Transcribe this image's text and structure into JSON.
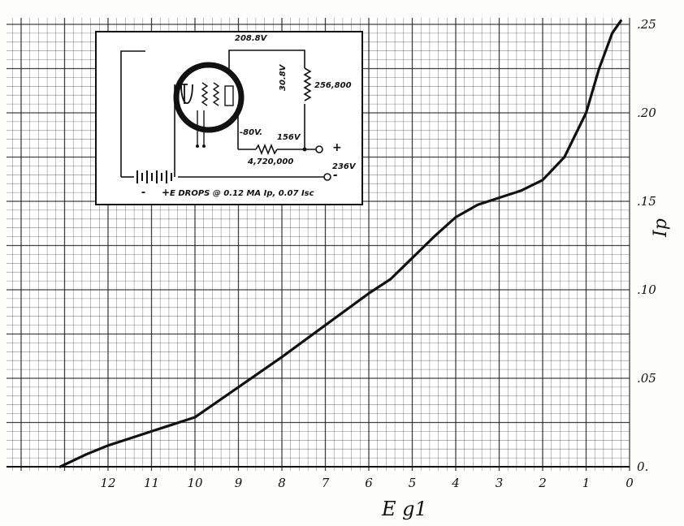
{
  "chart_data": {
    "type": "line",
    "title": "",
    "xlabel": "E g1",
    "ylabel": "Ip",
    "x_reversed": true,
    "xlim": [
      0,
      14
    ],
    "ylim": [
      0,
      0.25
    ],
    "grid": true,
    "x_ticks": [
      "12",
      "11",
      "10",
      "9",
      "8",
      "7",
      "6",
      "5",
      "4",
      "3",
      "2",
      "1",
      "0"
    ],
    "y_ticks": [
      "0.",
      ".05",
      ".10",
      ".15",
      ".20",
      ".25"
    ],
    "series": [
      {
        "x": [
          13.1,
          12.5,
          12.0,
          11.5,
          11.0,
          10.5,
          10.0,
          9.0,
          8.0,
          7.0,
          6.0,
          5.5,
          5.0,
          4.5,
          4.0,
          3.5,
          3.0,
          2.5,
          2.0,
          1.5,
          1.0,
          0.7,
          0.4,
          0.2
        ],
        "y": [
          0.0,
          0.007,
          0.012,
          0.016,
          0.02,
          0.024,
          0.028,
          0.045,
          0.062,
          0.08,
          0.098,
          0.106,
          0.118,
          0.13,
          0.141,
          0.148,
          0.152,
          0.156,
          0.162,
          0.175,
          0.2,
          0.225,
          0.245,
          0.252
        ]
      }
    ]
  },
  "inset": {
    "label_top": "208.8V",
    "label_30v": "30.8V",
    "label_256": "256,800",
    "label_m80": "-80V.",
    "label_156": "156V",
    "label_4720": "4,720,000",
    "label_236": "236V",
    "plus_top": "+",
    "minus_bottom": "-",
    "battery_minus": "-",
    "battery_plus": "+",
    "caption": "E DROPS @ 0.12 MA Ip, 0.07 Isc"
  }
}
